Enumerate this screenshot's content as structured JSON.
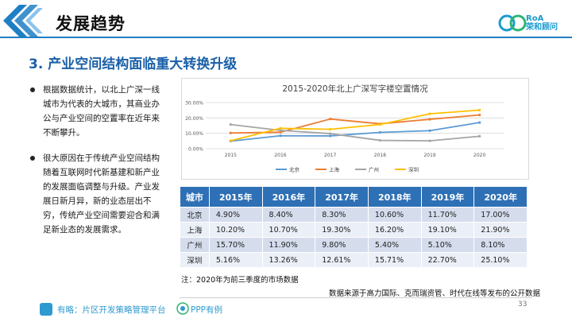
{
  "header": {
    "title": "发展趋势",
    "brand_line1": "RoA",
    "brand_line2": "荣和顾问"
  },
  "section": {
    "title": "3. 产业空间结构面临重大转换升级"
  },
  "bullets": [
    {
      "text": "根据数据统计，以北上广深一线城市为代表的大城市，其商业办公与产业空间的空置率在近年来不断攀升。"
    },
    {
      "text": "很大原因在于传统产业空间结构随着互联网时代新基建和新产业的发展面临调整与升级。产业发展日新月异，新的业态层出不穷，传统产业空间需要迎合和满足新业态的发展需求。"
    }
  ],
  "chart_data": {
    "type": "line",
    "title": "2015-2020年北上广深写字楼空置情况",
    "x": [
      "2015",
      "2016",
      "2017",
      "2018",
      "2019",
      "2020"
    ],
    "y_ticks": [
      "0.00%",
      "10.00%",
      "20.00%",
      "30.00%"
    ],
    "ylim": [
      0,
      30
    ],
    "grid": true,
    "legend_position": "bottom",
    "series": [
      {
        "name": "北京",
        "color": "#5b9bd5",
        "values": [
          4.9,
          8.4,
          8.3,
          10.6,
          11.7,
          17.0
        ]
      },
      {
        "name": "上海",
        "color": "#ed7d31",
        "values": [
          10.2,
          10.7,
          19.3,
          16.2,
          19.1,
          21.9
        ]
      },
      {
        "name": "广州",
        "color": "#a5a5a5",
        "values": [
          15.7,
          11.9,
          9.8,
          5.4,
          5.1,
          8.1
        ]
      },
      {
        "name": "深圳",
        "color": "#ffc000",
        "values": [
          5.16,
          13.26,
          12.61,
          15.71,
          22.7,
          25.1
        ]
      }
    ]
  },
  "table": {
    "headers": [
      "城市",
      "2015年",
      "2016年",
      "2017年",
      "2018年",
      "2019年",
      "2020年"
    ],
    "rows": [
      [
        "北京",
        "4.90%",
        "8.40%",
        "8.30%",
        "10.60%",
        "11.70%",
        "17.00%"
      ],
      [
        "上海",
        "10.20%",
        "10.70%",
        "19.30%",
        "16.20%",
        "19.10%",
        "21.90%"
      ],
      [
        "广州",
        "15.70%",
        "11.90%",
        "9.80%",
        "5.40%",
        "5.10%",
        "8.10%"
      ],
      [
        "深圳",
        "5.16%",
        "13.26%",
        "12.61%",
        "15.71%",
        "22.70%",
        "25.10%"
      ]
    ]
  },
  "note": "注：2020年为前三季度的市场数据",
  "source": "数据来源于高力国际、克而瑞资管、时代在线等发布的公开数据",
  "footer": {
    "text1": "有略：片区开发策略管理平台",
    "text2": "PPP有例",
    "page": "33"
  },
  "colors": {
    "accent": "#1f7fc4",
    "title_blue": "#1a60a8",
    "table_header": "#2e70b5",
    "footer_blue": "#2d9ad0"
  }
}
